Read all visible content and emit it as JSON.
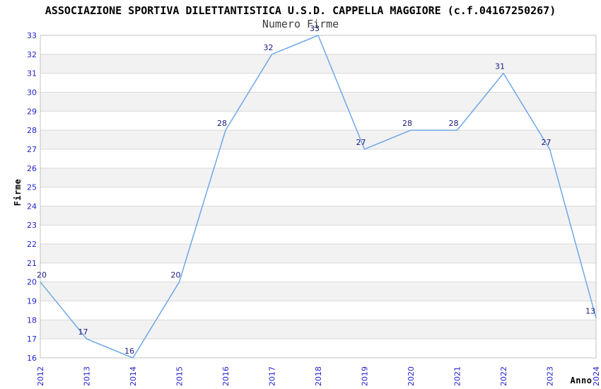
{
  "chart_data": {
    "type": "line",
    "title": "ASSOCIAZIONE SPORTIVA DILETTANTISTICA U.S.D. CAPPELLA MAGGIORE (c.f.04167250267)",
    "subtitle": "Numero Firme",
    "xlabel": "Anno",
    "ylabel": "Firme",
    "categories": [
      "2012",
      "2013",
      "2014",
      "2015",
      "2016",
      "2017",
      "2018",
      "2019",
      "2020",
      "2021",
      "2022",
      "2023",
      "2024"
    ],
    "values": [
      20,
      17,
      16,
      20,
      28,
      32,
      33,
      27,
      28,
      28,
      31,
      27,
      13
    ],
    "ylim": [
      16,
      33
    ],
    "ytick_step": 1,
    "grid": "horizontal",
    "alternating_bands": true,
    "legend": "none",
    "colors": {
      "line": "#6ea7e8",
      "tick_labels": "#2323cd",
      "data_labels": "#1a1a80",
      "band_gray": "#f2f2f2",
      "gridline": "#d9d9d9",
      "plot_border": "#c0c0c0",
      "background": "#ffffff"
    },
    "render_hints": {
      "last_segment_clipped_at_value": 18.1
    }
  }
}
